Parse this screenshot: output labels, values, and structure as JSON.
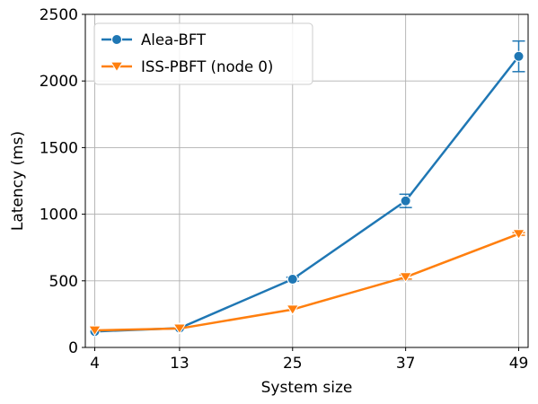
{
  "chart_data": {
    "type": "line",
    "xlabel": "System size",
    "ylabel": "Latency (ms)",
    "x": [
      4,
      13,
      25,
      37,
      49
    ],
    "x_tick_labels": [
      "4",
      "13",
      "25",
      "37",
      "49"
    ],
    "ylim": [
      0,
      2500
    ],
    "y_ticks": [
      0,
      500,
      1000,
      1500,
      2000,
      2500
    ],
    "y_tick_labels": [
      "0",
      "500",
      "1000",
      "1500",
      "2000",
      "2500"
    ],
    "grid": true,
    "legend_position": "top-left",
    "series": [
      {
        "name": "Alea-BFT",
        "color": "#1f77b4",
        "marker": "circle",
        "values": [
          120,
          145,
          512,
          1100,
          2185
        ],
        "error": [
          0,
          0,
          15,
          50,
          115
        ]
      },
      {
        "name": "ISS-PBFT (node 0)",
        "color": "#ff7f0e",
        "marker": "triangle-down",
        "values": [
          128,
          142,
          285,
          528,
          852
        ],
        "error": [
          0,
          0,
          0,
          15,
          10
        ]
      }
    ]
  }
}
